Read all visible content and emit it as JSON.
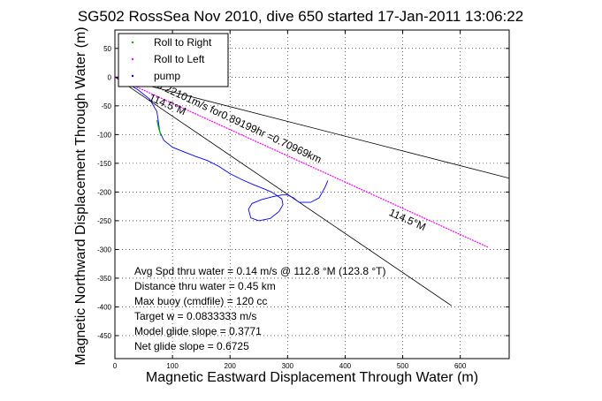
{
  "chart_data": {
    "type": "line",
    "title": "SG502 RossSea Nov 2010, dive 650 started 17-Jan-2011 13:06:22",
    "xlabel": "Magnetic Eastward Displacement Through Water (m)",
    "ylabel": "Magnetic Northward Displacement Through Water (m)",
    "xlim": [
      0,
      685
    ],
    "ylim": [
      -490,
      82
    ],
    "x_ticks": [
      0,
      100,
      200,
      300,
      400,
      500,
      600
    ],
    "y_ticks": [
      50,
      0,
      -50,
      -100,
      -150,
      -200,
      -250,
      -300,
      -350,
      -400,
      -450
    ],
    "grid": true,
    "legend_position": "top-left",
    "legend": [
      {
        "label": "Roll to Right",
        "color": "#00aa00"
      },
      {
        "label": "Roll to Left",
        "color": "#ff00ff"
      },
      {
        "label": "pump",
        "color": "#0000ff"
      }
    ],
    "series": [
      {
        "name": "pump",
        "color": "#0000ff",
        "x": [
          5,
          20,
          40,
          60,
          73,
          78,
          85,
          100,
          120,
          140,
          160,
          180,
          200,
          220,
          240,
          260,
          272,
          280,
          290,
          292,
          285,
          270,
          250,
          236,
          232,
          238,
          255,
          275,
          290,
          300,
          310,
          320,
          340,
          355,
          365,
          370
        ],
        "y": [
          -2,
          -10,
          -22,
          -38,
          -60,
          -95,
          -110,
          -122,
          -130,
          -138,
          -145,
          -155,
          -168,
          -178,
          -187,
          -195,
          -200,
          -205,
          -212,
          -222,
          -234,
          -246,
          -250,
          -245,
          -230,
          -220,
          -213,
          -208,
          -205,
          -205,
          -210,
          -218,
          -218,
          -210,
          -192,
          -180
        ]
      },
      {
        "name": "Roll to Right",
        "color": "#00aa00",
        "x": [
          73,
          76,
          80
        ],
        "y": [
          -75,
          -88,
          -102
        ]
      },
      {
        "name": "Roll to Left",
        "color": "#ff00ff",
        "x": [
          0,
          648
        ],
        "y": [
          0,
          -296
        ]
      }
    ],
    "lines": [
      {
        "color": "#000000",
        "x": [
          0,
          685
        ],
        "y": [
          0,
          -176
        ]
      },
      {
        "color": "#000000",
        "x": [
          0,
          585
        ],
        "y": [
          0,
          -398
        ]
      }
    ],
    "annotations": [
      {
        "text": "-0.22101m/s for0.89199hr =0.70969km",
        "x": 66,
        "y": -15,
        "rotate": 25
      },
      {
        "text": "114.5°M",
        "x": 58,
        "y": -40,
        "rotate": 23
      },
      {
        "text": "114.5°M",
        "x": 475,
        "y": -240,
        "rotate": 24
      }
    ],
    "stats": [
      "Avg Spd thru water =  0.14 m/s @ 112.8    °M (123.8 °T)",
      "Distance thru water =  0.45 km",
      "Max buoy (cmdfile) = 120 cc",
      "Target w = 0.0833333 m/s",
      "Model glide slope = 0.3771",
      "Net glide slope = 0.6725"
    ]
  }
}
